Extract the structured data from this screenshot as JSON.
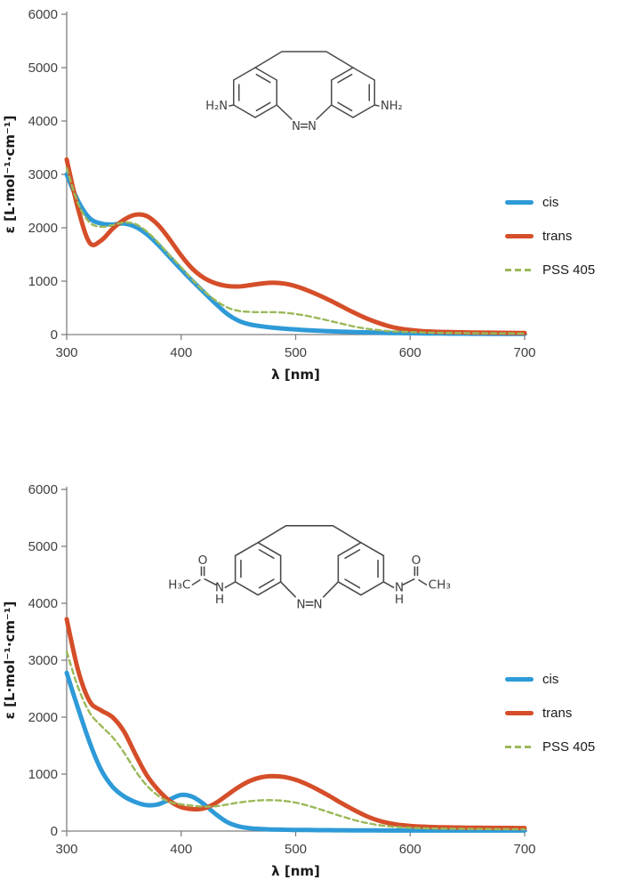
{
  "page": {
    "background": "#ffffff"
  },
  "styles": {
    "axis_line_color": "#7f7f7f",
    "tick_text_color": "#404040",
    "axis_title_color": "#1a1a1a",
    "cis_color": "#2e9ad7",
    "trans_color": "#d54e29",
    "pss_color": "#9bb959"
  },
  "molecules": {
    "top": {
      "amine_left": "H₂N",
      "amine_right": "NH₂",
      "azo_n_left": "N",
      "azo_n_right": "N"
    },
    "bottom": {
      "methyl_left": "H₃C",
      "methyl_right": "CH₃",
      "carbonyl_o_left": "O",
      "carbonyl_o_right": "O",
      "amide_n_left": "N",
      "amide_h_left": "H",
      "amide_n_right": "N",
      "amide_h_right": "H",
      "azo_n_left": "N",
      "azo_n_right": "N"
    }
  },
  "chart_data": [
    {
      "name": "top-spectrum",
      "type": "line",
      "title": "",
      "xlabel": "λ [nm]",
      "ylabel": "ε [L·mol⁻¹·cm⁻¹]",
      "x_range": [
        300,
        700
      ],
      "y_range": [
        0,
        6000
      ],
      "x_ticks": [
        300,
        400,
        500,
        600,
        700
      ],
      "y_ticks": [
        0,
        1000,
        2000,
        3000,
        4000,
        5000,
        6000
      ],
      "grid": false,
      "legend_position": "right",
      "x": [
        300,
        310,
        320,
        330,
        340,
        350,
        360,
        370,
        380,
        390,
        400,
        410,
        420,
        430,
        440,
        450,
        460,
        470,
        480,
        490,
        500,
        510,
        520,
        530,
        540,
        550,
        560,
        570,
        580,
        590,
        600,
        610,
        620,
        630,
        640,
        650,
        660,
        670,
        680,
        690,
        700
      ],
      "series": [
        {
          "name": "cis",
          "color": "#2e9ad7",
          "style": "solid",
          "width": 5,
          "values": [
            3000,
            2500,
            2180,
            2080,
            2060,
            2080,
            2020,
            1880,
            1680,
            1450,
            1220,
            1000,
            790,
            580,
            390,
            260,
            190,
            155,
            130,
            110,
            95,
            82,
            72,
            63,
            55,
            48,
            42,
            37,
            32,
            29,
            26,
            23,
            21,
            19,
            17,
            16,
            15,
            14,
            13,
            12,
            12
          ]
        },
        {
          "name": "trans",
          "color": "#d54e29",
          "style": "solid",
          "width": 5,
          "values": [
            3280,
            2350,
            1720,
            1760,
            1980,
            2150,
            2245,
            2220,
            2050,
            1780,
            1480,
            1230,
            1060,
            960,
            910,
            900,
            925,
            955,
            970,
            955,
            905,
            830,
            740,
            640,
            530,
            420,
            320,
            235,
            165,
            115,
            85,
            65,
            55,
            48,
            43,
            40,
            37,
            35,
            33,
            31,
            30
          ]
        },
        {
          "name": "PSS 405",
          "color": "#9bb959",
          "style": "dashed",
          "width": 2.4,
          "dash": "6 4",
          "values": [
            3120,
            2450,
            2100,
            2020,
            2050,
            2100,
            2070,
            1930,
            1720,
            1480,
            1260,
            1020,
            810,
            640,
            510,
            445,
            425,
            420,
            420,
            410,
            385,
            350,
            305,
            255,
            205,
            155,
            115,
            88,
            68,
            55,
            46,
            40,
            35,
            31,
            29,
            27,
            25,
            23,
            22,
            21,
            20
          ]
        }
      ]
    },
    {
      "name": "bottom-spectrum",
      "type": "line",
      "title": "",
      "xlabel": "λ [nm]",
      "ylabel": "ε [L·mol⁻¹·cm⁻¹]",
      "x_range": [
        300,
        700
      ],
      "y_range": [
        0,
        6000
      ],
      "x_ticks": [
        300,
        400,
        500,
        600,
        700
      ],
      "y_ticks": [
        0,
        1000,
        2000,
        3000,
        4000,
        5000,
        6000
      ],
      "grid": false,
      "legend_position": "right",
      "x": [
        300,
        310,
        320,
        330,
        340,
        350,
        360,
        370,
        380,
        390,
        400,
        410,
        420,
        430,
        440,
        450,
        460,
        470,
        480,
        490,
        500,
        510,
        520,
        530,
        540,
        550,
        560,
        570,
        580,
        590,
        600,
        610,
        620,
        630,
        640,
        650,
        660,
        670,
        680,
        690,
        700
      ],
      "series": [
        {
          "name": "cis",
          "color": "#2e9ad7",
          "style": "solid",
          "width": 5,
          "values": [
            2780,
            2150,
            1560,
            1080,
            780,
            610,
            510,
            455,
            470,
            555,
            635,
            600,
            470,
            300,
            160,
            85,
            50,
            36,
            28,
            24,
            20,
            18,
            16,
            15,
            14,
            13,
            12,
            11,
            10,
            10,
            10,
            10,
            10,
            10,
            10,
            10,
            10,
            10,
            10,
            10,
            10
          ]
        },
        {
          "name": "trans",
          "color": "#d54e29",
          "style": "solid",
          "width": 5,
          "values": [
            3720,
            2820,
            2280,
            2120,
            2000,
            1750,
            1350,
            980,
            720,
            530,
            420,
            385,
            400,
            490,
            630,
            770,
            880,
            945,
            965,
            950,
            900,
            820,
            720,
            610,
            490,
            380,
            280,
            200,
            145,
            110,
            90,
            78,
            70,
            65,
            62,
            60,
            58,
            56,
            55,
            54,
            53
          ]
        },
        {
          "name": "PSS 405",
          "color": "#9bb959",
          "style": "dashed",
          "width": 2.4,
          "dash": "6 4",
          "values": [
            3150,
            2520,
            2080,
            1850,
            1650,
            1380,
            1060,
            800,
            620,
            510,
            470,
            445,
            430,
            435,
            465,
            500,
            525,
            540,
            542,
            530,
            500,
            450,
            390,
            325,
            260,
            200,
            150,
            112,
            86,
            68,
            58,
            50,
            45,
            42,
            40,
            38,
            36,
            35,
            34,
            33,
            32
          ]
        }
      ]
    }
  ]
}
